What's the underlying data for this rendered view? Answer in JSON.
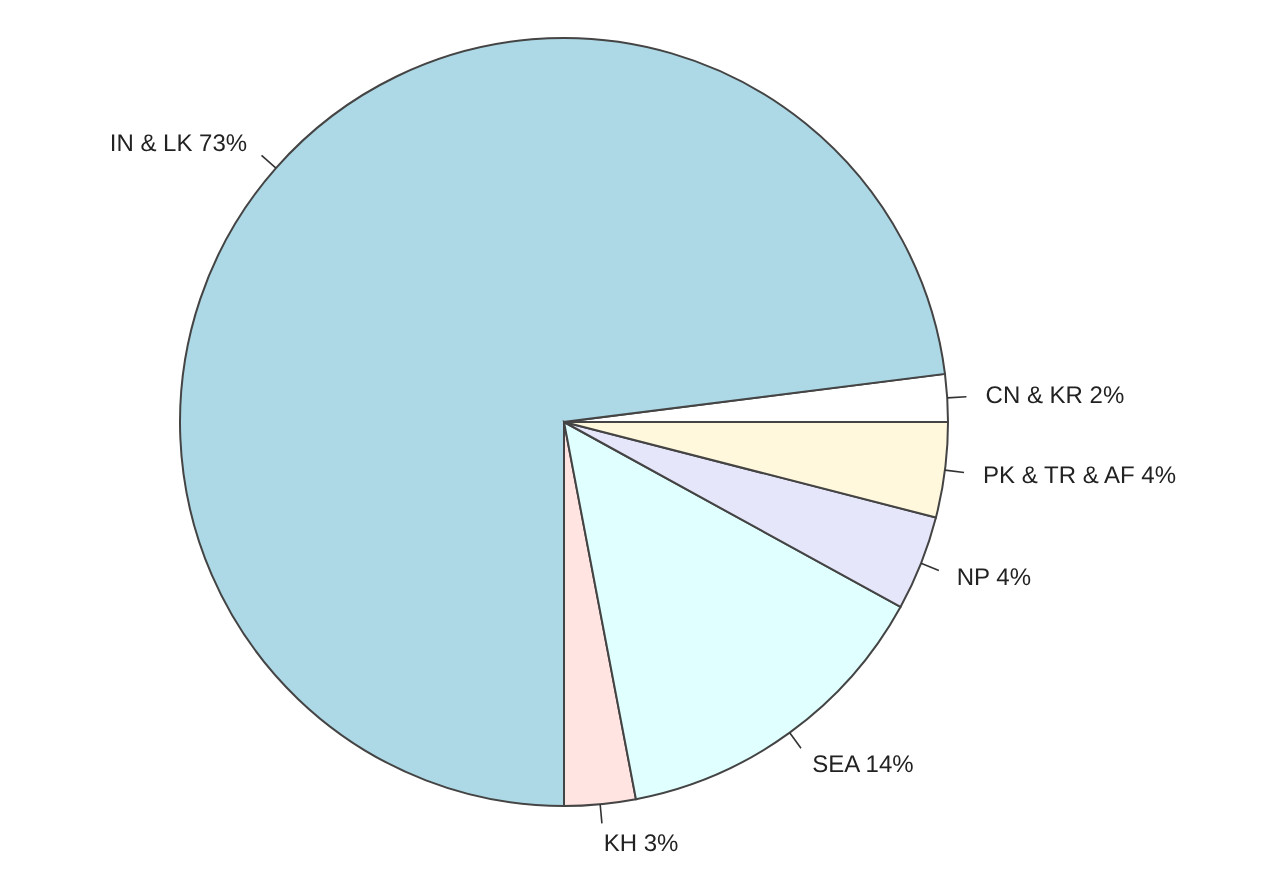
{
  "chart_data": {
    "type": "pie",
    "categories": [
      "CN & KR",
      "IN & LK",
      "KH",
      "SEA",
      "NP",
      "PK & TR & AF"
    ],
    "values": [
      2,
      73,
      3,
      14,
      4,
      4
    ],
    "value_labels": [
      "2%",
      "73%",
      "3%",
      "14%",
      "4%",
      "4%"
    ],
    "colors": [
      "#ffffff",
      "#add8e6",
      "#ffe4e1",
      "#e0ffff",
      "#e6e6fa",
      "#fff8dc"
    ]
  }
}
